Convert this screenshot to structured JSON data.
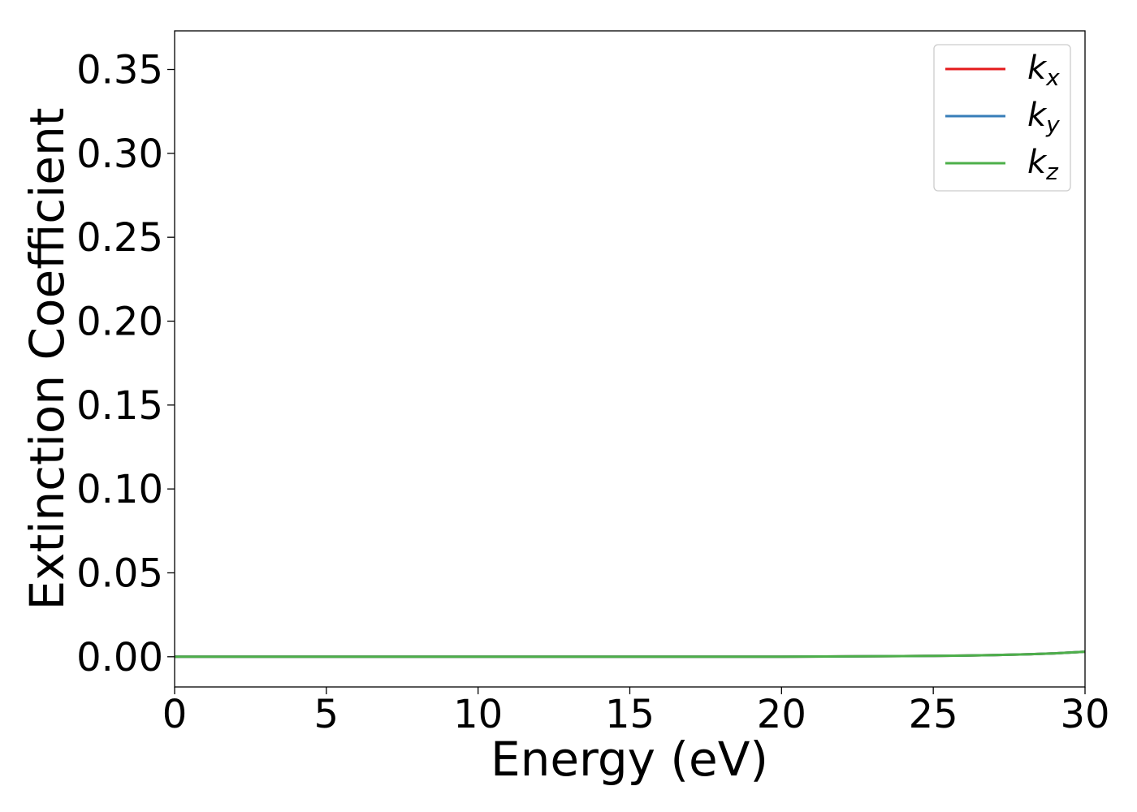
{
  "chart_data": {
    "type": "line",
    "title": "",
    "xlabel": "Energy (eV)",
    "ylabel": "Extinction Coefficient",
    "xlim": [
      0,
      30
    ],
    "ylim": [
      -0.018,
      0.373
    ],
    "x_ticks": [
      0,
      5,
      10,
      15,
      20,
      25,
      30
    ],
    "x_tick_labels": [
      "0",
      "5",
      "10",
      "15",
      "20",
      "25",
      "30"
    ],
    "y_ticks": [
      0.0,
      0.05,
      0.1,
      0.15,
      0.2,
      0.25,
      0.3,
      0.35
    ],
    "y_tick_labels": [
      "0.00",
      "0.05",
      "0.10",
      "0.15",
      "0.20",
      "0.25",
      "0.30",
      "0.35"
    ],
    "grid": false,
    "legend_position": "top-right",
    "x": [
      0,
      5,
      10,
      15,
      20,
      22,
      24,
      25,
      26,
      27,
      28,
      29,
      30
    ],
    "series": [
      {
        "name": "k_x",
        "legend_base": "k",
        "legend_sub": "x",
        "color": "#e41a1c",
        "values": [
          0.0,
          0.0,
          0.0,
          0.0,
          0.0,
          0.0002,
          0.0004,
          0.0005,
          0.0007,
          0.001,
          0.0014,
          0.002,
          0.003
        ]
      },
      {
        "name": "k_y",
        "legend_base": "k",
        "legend_sub": "y",
        "color": "#377eb8",
        "values": [
          0.0,
          0.0,
          0.0,
          0.0,
          0.0,
          0.0002,
          0.0004,
          0.0005,
          0.0007,
          0.001,
          0.0014,
          0.002,
          0.003
        ]
      },
      {
        "name": "k_z",
        "legend_base": "k",
        "legend_sub": "z",
        "color": "#4daf4a",
        "values": [
          0.0,
          0.0,
          0.0,
          0.0,
          0.0,
          0.0002,
          0.0004,
          0.0005,
          0.0007,
          0.001,
          0.0014,
          0.002,
          0.003
        ]
      }
    ]
  }
}
